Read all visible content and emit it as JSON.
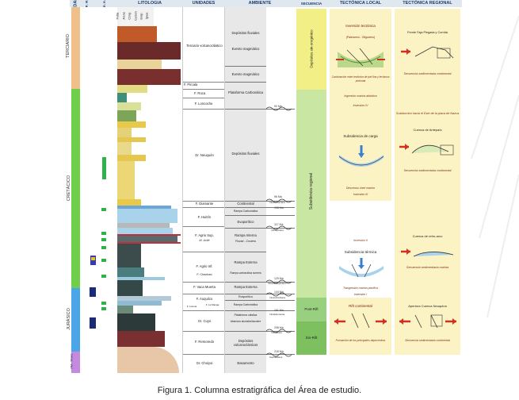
{
  "headers": {
    "edad": "EDAD",
    "rm": "R. M.",
    "rr": "R. R.",
    "litologia": "LITOLOGIA",
    "unidades": "UNIDADES",
    "ambiente": "AMBIENTE",
    "secuencia": "SECUENCIA",
    "tectonica_local": "TECTÓNICA LOCAL",
    "tectonica_regional": "TECTÓNICA REGIONAL"
  },
  "lith_sub": [
    "Pelita",
    "Arena",
    "Cong.",
    "Carbón",
    "Evap.",
    "Ígnea"
  ],
  "edades": {
    "terciario": "TERCIARIO",
    "cretacico": "CRETÁCICO",
    "jurasico": "JURÁSICO",
    "pm_trias": "PM - TRIAS"
  },
  "unidades": {
    "terciario": "Terciario volcanoclástico",
    "pircala": "F. Pircala",
    "roca": "F. Roca",
    "loncoche": "F. Loncoche",
    "neuquen": "Gr. Neuquén",
    "diamante": "F. Diamante",
    "huitrin": "F. Huitrín",
    "agrio_sup": "F. Agrio Sup.",
    "m_avile": "M. Avilé",
    "agrio_inf": "F. Agrio Inf.",
    "chachao": "F. Chachao",
    "vaca_muerta": "F. Vaca Muerta",
    "auquilco": "F. Auquilco",
    "lotena": "F. Lotena",
    "la_manga": "F. La Manga",
    "cuyo": "Gr. Cuyo",
    "remoredo": "F. Remoredo",
    "choiyoi": "Gr. Choiyoi"
  },
  "ambiente": {
    "fluviales_1": "Depósitos fluviales",
    "magmatico_1": "Evento magmático",
    "magmatico_2": "Evento magmático",
    "plataforma": "Plataforma Carbonática",
    "fluviales_2": "Depósitos fluviales",
    "continental": "Continental",
    "rampa_carb": "Rampa Carbonática",
    "evaporitico": "Evaporítico",
    "rampa_interna": "Rampa Interna",
    "fluvial_costero": "Fluvial - Costero",
    "rampa_externa_1": "Rampa Externa",
    "rampa_carb_somera": "Rampa carbonática somera",
    "rampa_externa_2": "Rampa Externa",
    "evaporitico_2": "Evaporítico",
    "rampa_carb_2": "Rampa Carbonática",
    "plataforma_clastica": "Plataforma clástica",
    "abanicos": "Abanicos aluviales/lacustre",
    "volcanoclasticos": "Depósitos volcanoclásticos",
    "basamento": "Basamento"
  },
  "ages": {
    "a1": "90 Ma",
    "a2": "96 Ma",
    "a3": "Intersenoniana",
    "a4": "106 Ma",
    "a5": "117 Ma",
    "a6": "Intraaptiana",
    "a7": "129 Ma",
    "a8": "Intravalanginiana",
    "a9": "144 Ma",
    "a10": "Intraoxfordiana",
    "a11": "161 Ma",
    "a12": "Intrabatoniana",
    "a13": "208 Ma",
    "a14": "Intralásica",
    "a15": "215 Ma",
    "a16": "Supraliásica"
  },
  "secuencia": {
    "sin_orogenico": "Depósitos sin-orogénico",
    "regional": "Subsidencia regional",
    "post_rift": "Post-Rift",
    "sin_rift": "Sin-Rift"
  },
  "local": {
    "inv_tectonica": "Inversión tectónica",
    "paleoceno": "(Paleoceno - Oligoceno)",
    "combinacion": "Combinación entre tectónica de piel fina y tectónica profunda",
    "ingresion": "Ingresión marina atlántica",
    "inv4": "Inversión IV",
    "subsidencia_carga": "Subsidencia de carga",
    "descenso": "Descenso nivel marino",
    "inv3": "Inversión III",
    "inv2": "Inversión II",
    "subsidencia_termica": "Subsidencia térmica",
    "transgresion": "Trasgresión marina pacífica",
    "inv1": "Inversión I",
    "rift": "Rift continental",
    "formacion": "Formación de los principales depocentros"
  },
  "regional": {
    "faja": "Frente Faja Plegada y Corrida",
    "sed_cont_1": "Secuencia sedimentaria continental",
    "subduccion": "Subducción hacia el Este de la placa de Nazca",
    "antepais": "Cuenca de Antepaís",
    "sed_cont_2": "Secuencia sedimentaria continental",
    "retroarco": "Cuenca de retro-arco",
    "sed_marina": "Secuencia sedimentaria marina",
    "apertura": "Apertura Cuenca Neuquina",
    "sed_cont_3": "Secuencia sedimentaria continental"
  },
  "caption": "Figura 1. Columna estratigráfica del Área de estudio."
}
